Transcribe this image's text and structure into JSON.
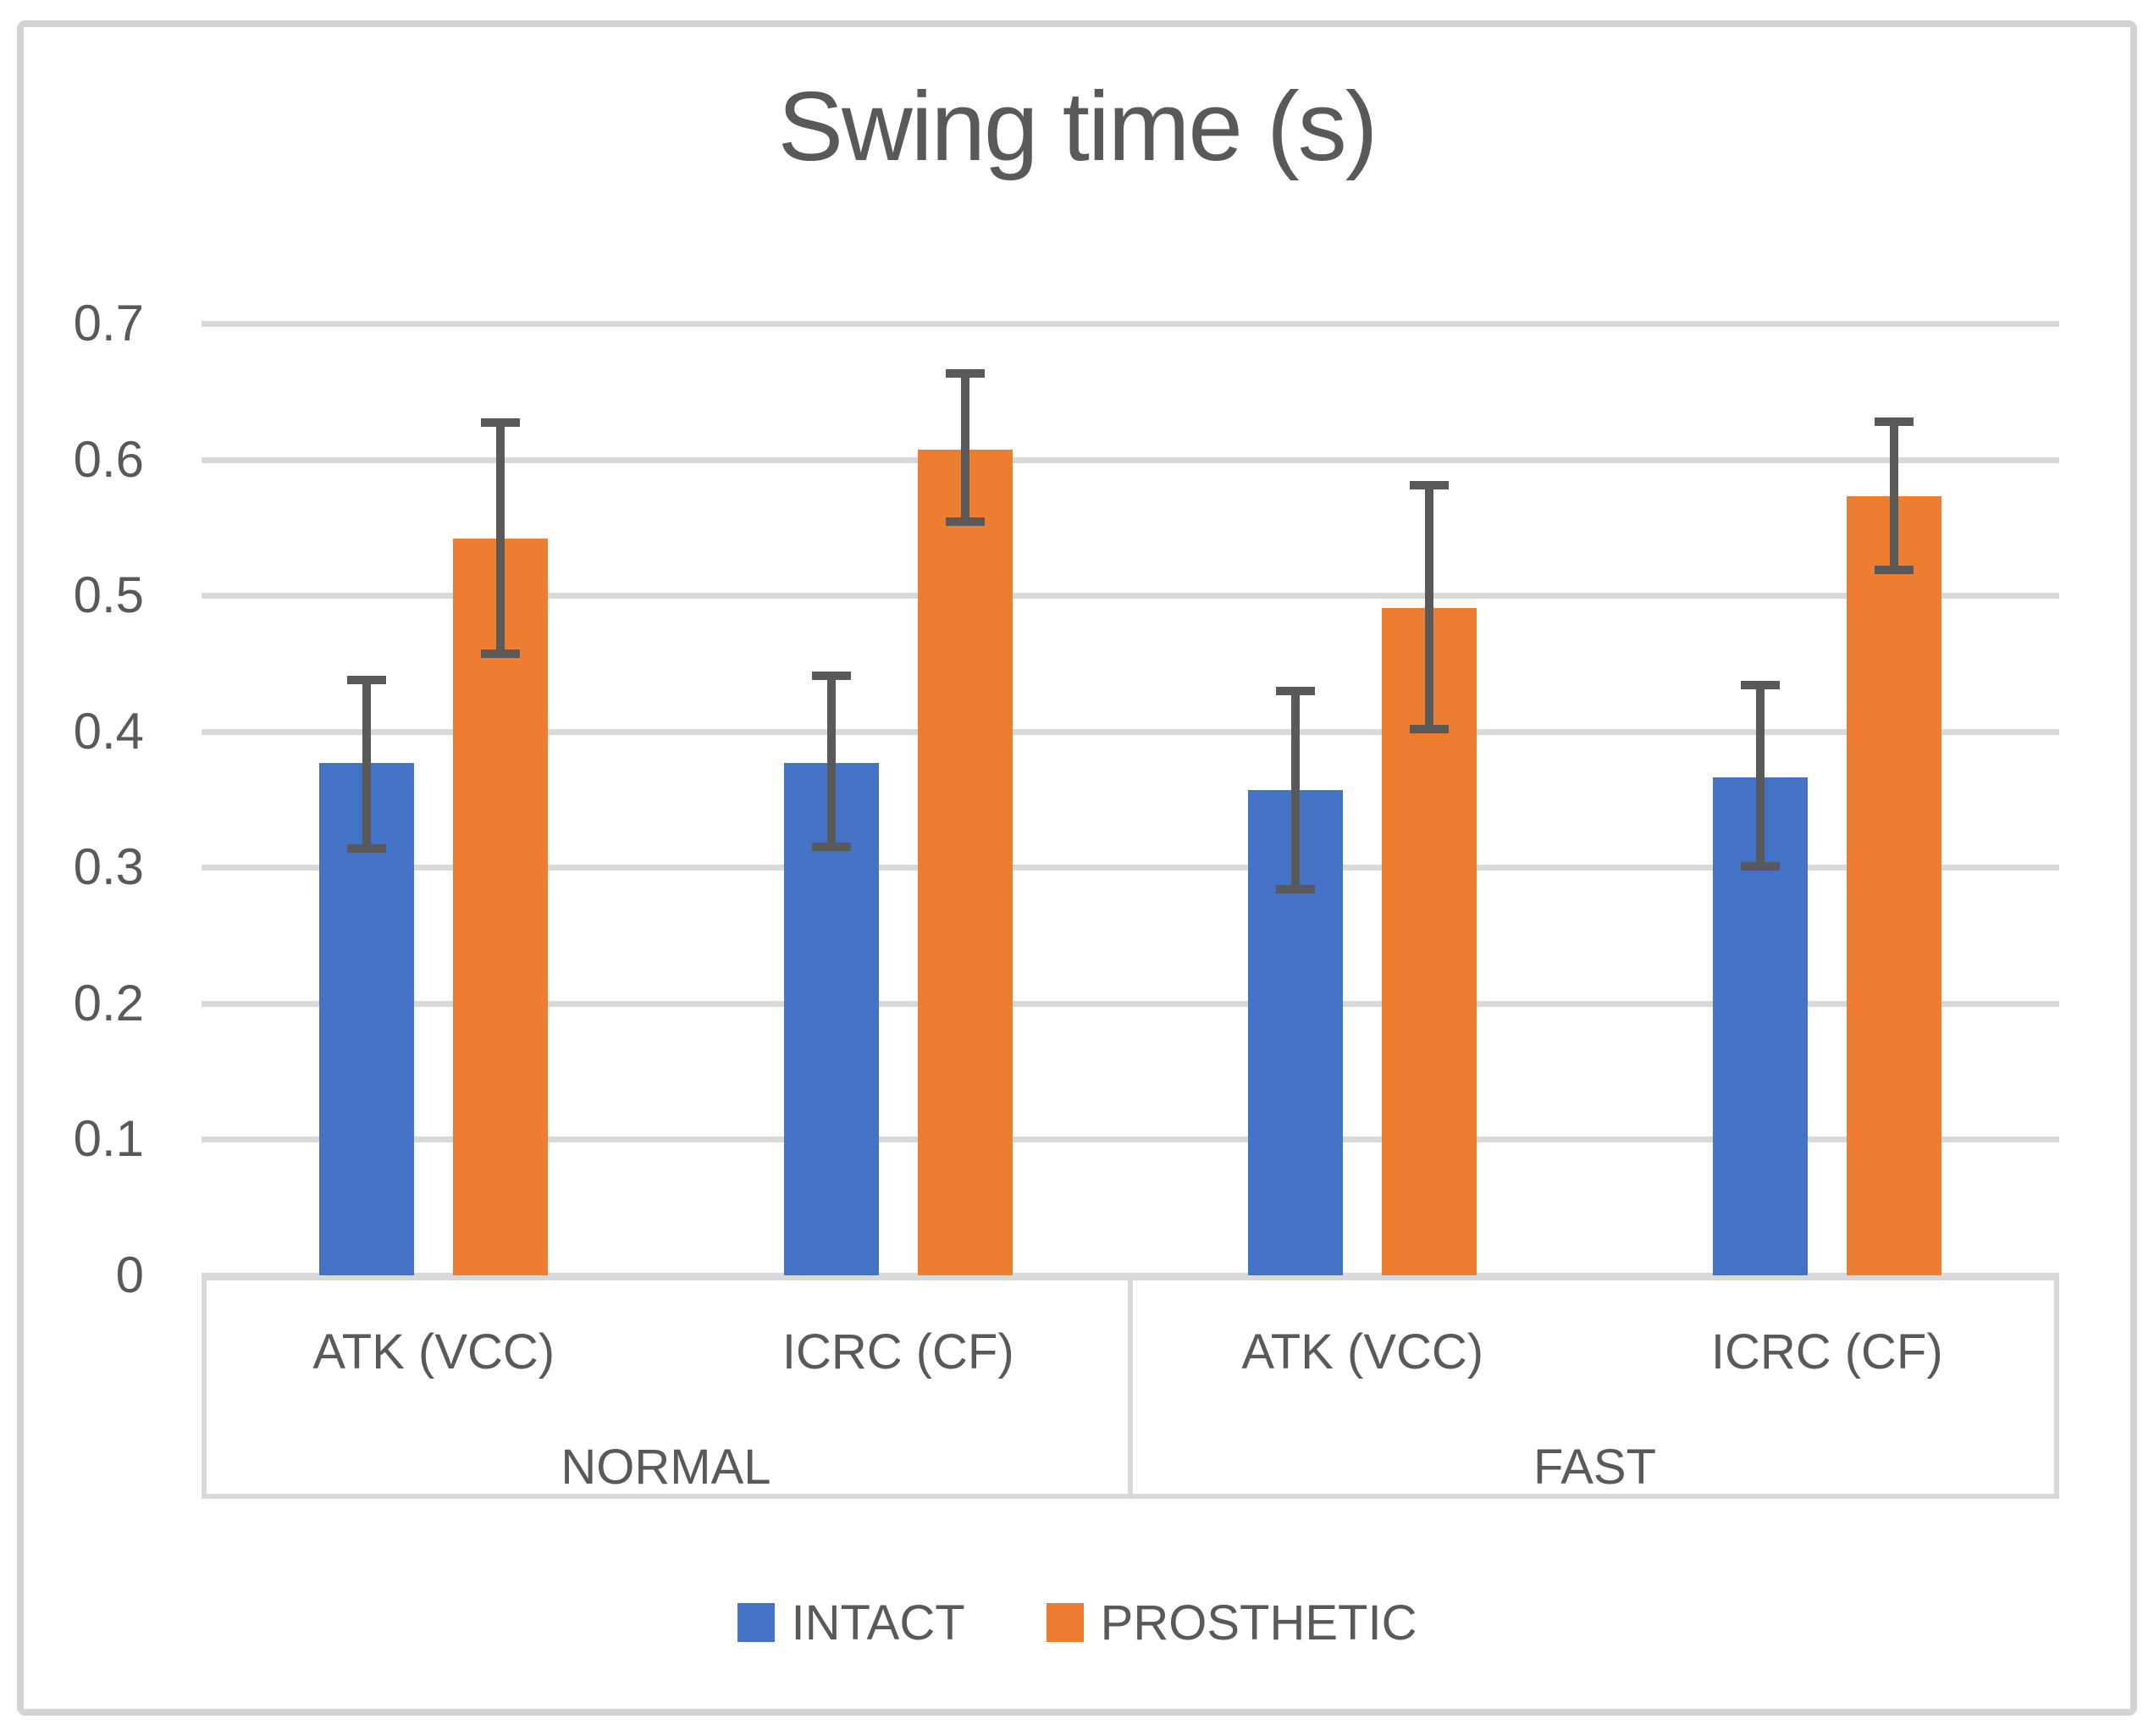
{
  "title": "Swing time (s)",
  "y_axis": {
    "min": 0,
    "max": 0.7,
    "ticks": [
      "0",
      "0.1",
      "0.2",
      "0.3",
      "0.4",
      "0.5",
      "0.6",
      "0.7"
    ]
  },
  "x_axis": {
    "groups": [
      {
        "label": "NORMAL",
        "categories": [
          "ATK (VCC)",
          "ICRC (CF)"
        ]
      },
      {
        "label": "FAST",
        "categories": [
          "ATK (VCC)",
          "ICRC (CF)"
        ]
      }
    ]
  },
  "legend": {
    "items": [
      {
        "label": "INTACT",
        "color": "#4472C4"
      },
      {
        "label": "PROSTHETIC",
        "color": "#ED7D31"
      }
    ]
  },
  "colors": {
    "intact_blue": "#4472C4",
    "prosthetic_orange": "#ED7D31",
    "error_bar": "#595959",
    "gridline": "#D9D9D9",
    "text": "#595959",
    "frame_border": "#D3D3D3"
  },
  "chart_data": {
    "type": "bar",
    "title": "Swing time (s)",
    "xlabel": "",
    "ylabel": "",
    "ylim": [
      0,
      0.7
    ],
    "grid": true,
    "legend_position": "bottom",
    "categories": [
      "NORMAL ATK (VCC)",
      "NORMAL ICRC (CF)",
      "FAST ATK (VCC)",
      "FAST ICRC (CF)"
    ],
    "series": [
      {
        "name": "INTACT",
        "color": "#4472C4",
        "values": [
          0.377,
          0.377,
          0.357,
          0.366
        ],
        "error_low": [
          0.314,
          0.315,
          0.284,
          0.301
        ],
        "error_high": [
          0.438,
          0.441,
          0.43,
          0.434
        ]
      },
      {
        "name": "PROSTHETIC",
        "color": "#ED7D31",
        "values": [
          0.542,
          0.607,
          0.491,
          0.573
        ],
        "error_low": [
          0.457,
          0.554,
          0.402,
          0.519
        ],
        "error_high": [
          0.627,
          0.663,
          0.581,
          0.628
        ]
      }
    ]
  }
}
